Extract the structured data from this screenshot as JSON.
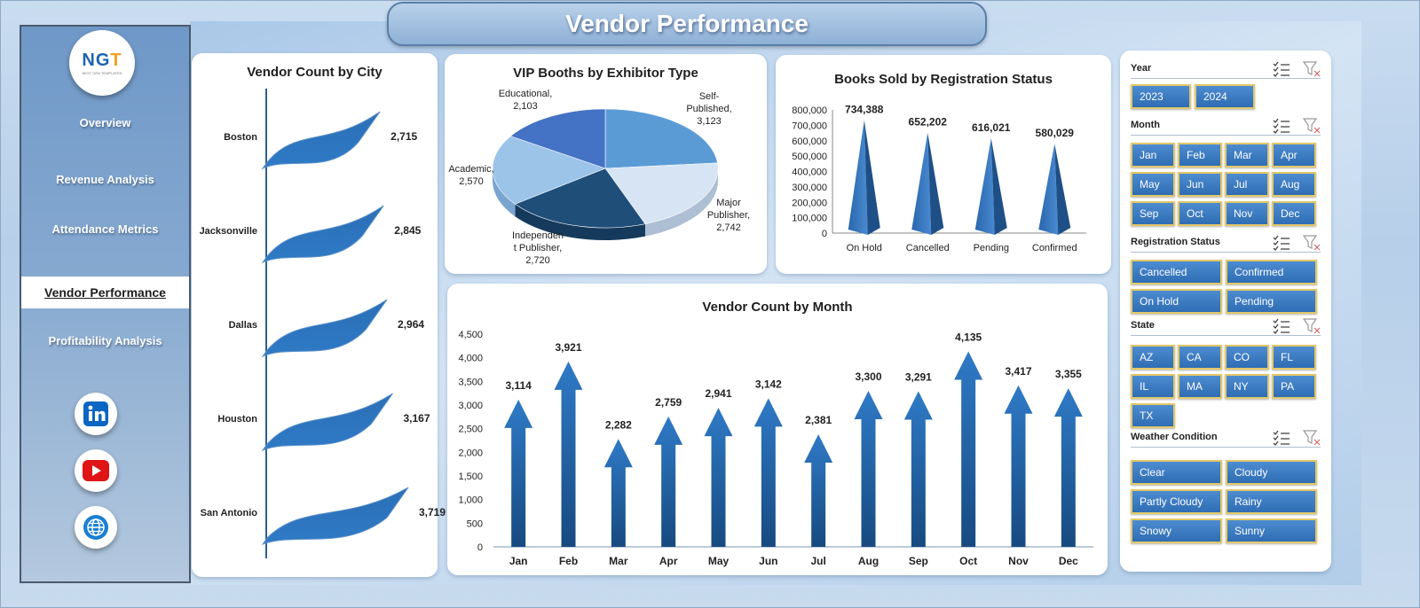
{
  "header": {
    "title": "Vendor Performance"
  },
  "logo": {
    "mark_left": "NG",
    "mark_right": "T",
    "subtitle": "NEXT GEN TEMPLATES"
  },
  "sidebar": {
    "items": [
      {
        "label": "Overview",
        "active": false
      },
      {
        "label": "Revenue Analysis",
        "active": false
      },
      {
        "label": "Attendance Metrics",
        "active": false
      },
      {
        "label": "Vendor Performance",
        "active": true
      },
      {
        "label": "Profitability Analysis",
        "active": false
      }
    ],
    "social": [
      "linkedin-icon",
      "youtube-icon",
      "globe-icon"
    ]
  },
  "charts": {
    "city": {
      "title": "Vendor Count by City",
      "chart_data": {
        "type": "bar",
        "categories": [
          "Boston",
          "Jacksonville",
          "Dallas",
          "Houston",
          "San Antonio"
        ],
        "values": [
          2715,
          2845,
          2964,
          3167,
          3719
        ],
        "labels": [
          "2,715",
          "2,845",
          "2,964",
          "3,167",
          "3,719"
        ]
      }
    },
    "vip": {
      "title": "VIP Booths by Exhibitor Type",
      "chart_data": {
        "type": "pie",
        "categories": [
          "Self-Published",
          "Major Publisher",
          "Independent Publisher",
          "Academic",
          "Educational"
        ],
        "values": [
          3123,
          2742,
          2720,
          2570,
          2103
        ],
        "labels": [
          [
            "Self-",
            "Published,",
            "3,123"
          ],
          [
            "Major",
            "Publisher,",
            "2,742"
          ],
          [
            "Independen",
            "t Publisher,",
            "2,720"
          ],
          [
            "Academic,",
            "2,570"
          ],
          [
            "Educational,",
            "2,103"
          ]
        ]
      }
    },
    "books": {
      "title": "Books Sold by Registration Status",
      "chart_data": {
        "type": "bar",
        "categories": [
          "On Hold",
          "Cancelled",
          "Pending",
          "Confirmed"
        ],
        "values": [
          734388,
          652202,
          616021,
          580029
        ],
        "labels": [
          "734,388",
          "652,202",
          "616,021",
          "580,029"
        ],
        "ylim": [
          0,
          800000
        ],
        "yticks": [
          "0",
          "100,000",
          "200,000",
          "300,000",
          "400,000",
          "500,000",
          "600,000",
          "700,000",
          "800,000"
        ]
      }
    },
    "month": {
      "title": "Vendor Count by Month",
      "chart_data": {
        "type": "bar",
        "categories": [
          "Jan",
          "Feb",
          "Mar",
          "Apr",
          "May",
          "Jun",
          "Jul",
          "Aug",
          "Sep",
          "Oct",
          "Nov",
          "Dec"
        ],
        "values": [
          3114,
          3921,
          2282,
          2759,
          2941,
          3142,
          2381,
          3300,
          3291,
          4135,
          3417,
          3355
        ],
        "labels": [
          "3,114",
          "3,921",
          "2,282",
          "2,759",
          "2,941",
          "3,142",
          "2,381",
          "3,300",
          "3,291",
          "4,135",
          "3,417",
          "3,355"
        ],
        "ylim": [
          0,
          4500
        ],
        "yticks": [
          "0",
          "500",
          "1,000",
          "1,500",
          "2,000",
          "2,500",
          "3,000",
          "3,500",
          "4,000",
          "4,500"
        ]
      }
    }
  },
  "slicers": {
    "year": {
      "title": "Year",
      "items": [
        "2023",
        "2024"
      ]
    },
    "month": {
      "title": "Month",
      "items": [
        "Jan",
        "Feb",
        "Mar",
        "Apr",
        "May",
        "Jun",
        "Jul",
        "Aug",
        "Sep",
        "Oct",
        "Nov",
        "Dec"
      ]
    },
    "registration": {
      "title": "Registration Status",
      "items": [
        "Cancelled",
        "Confirmed",
        "On Hold",
        "Pending"
      ]
    },
    "state": {
      "title": "State",
      "items": [
        "AZ",
        "CA",
        "CO",
        "FL",
        "IL",
        "MA",
        "NY",
        "PA",
        "TX"
      ]
    },
    "weather": {
      "title": "Weather Condition",
      "items": [
        "Clear",
        "Cloudy",
        "Partly Cloudy",
        "Rainy",
        "Snowy",
        "Sunny"
      ]
    }
  },
  "colors": {
    "accent": "#2f6db4",
    "dark": "#1c4f86",
    "slicer_border": "#e3c868"
  }
}
